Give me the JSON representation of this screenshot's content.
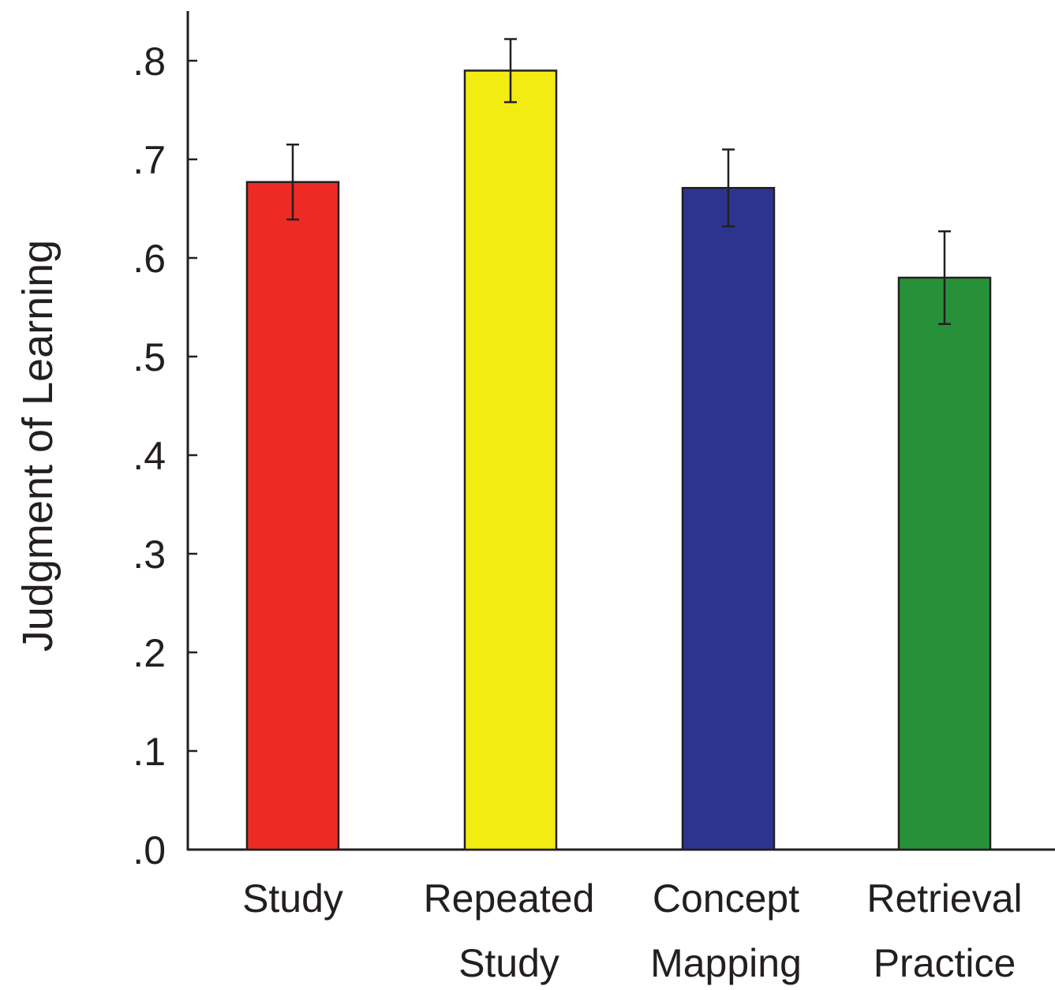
{
  "chart_data": {
    "type": "bar",
    "title": "",
    "xlabel": "",
    "ylabel": "Judgment of Learning",
    "ylim": [
      0,
      0.85
    ],
    "yticks": [
      0.0,
      0.1,
      0.2,
      0.3,
      0.4,
      0.5,
      0.6,
      0.7,
      0.8
    ],
    "ytick_labels": [
      ".0",
      ".1",
      ".2",
      ".3",
      ".4",
      ".5",
      ".6",
      ".7",
      ".8"
    ],
    "grid": false,
    "legend": "none",
    "categories": [
      {
        "lines": [
          "Study"
        ]
      },
      {
        "lines": [
          "Repeated",
          "Study"
        ]
      },
      {
        "lines": [
          "Concept",
          "Mapping"
        ]
      },
      {
        "lines": [
          "Retrieval",
          "Practice"
        ]
      }
    ],
    "values": [
      0.677,
      0.79,
      0.671,
      0.58
    ],
    "errors": [
      0.038,
      0.032,
      0.039,
      0.047
    ],
    "colors": [
      "#ee2a24",
      "#f2ec13",
      "#2b3590",
      "#27913a"
    ]
  }
}
